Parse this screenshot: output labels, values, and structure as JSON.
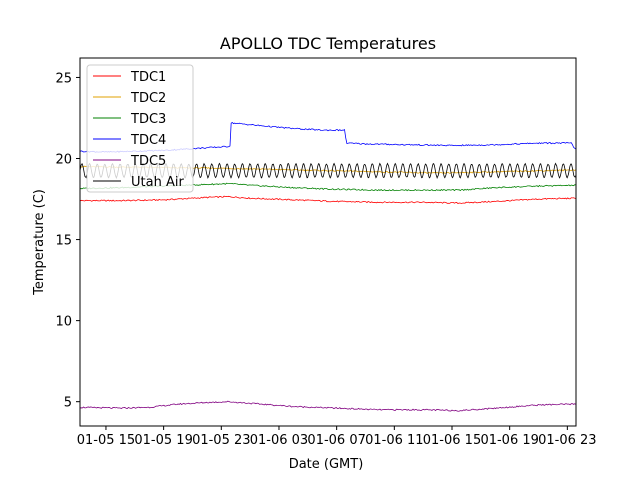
{
  "chart_data": {
    "type": "line",
    "title": "APOLLO TDC Temperatures",
    "xlabel": "Date (GMT)",
    "ylabel": "Temperature (C)",
    "xlim": [
      13.2,
      47.6
    ],
    "ylim": [
      3.5,
      26.2
    ],
    "x_ticks": [
      {
        "value": 15,
        "label": "01-05 15"
      },
      {
        "value": 19,
        "label": "01-05 19"
      },
      {
        "value": 23,
        "label": "01-05 23"
      },
      {
        "value": 27,
        "label": "01-06 03"
      },
      {
        "value": 31,
        "label": "01-06 07"
      },
      {
        "value": 35,
        "label": "01-06 11"
      },
      {
        "value": 39,
        "label": "01-06 15"
      },
      {
        "value": 43,
        "label": "01-06 19"
      },
      {
        "value": 47,
        "label": "01-06 23"
      }
    ],
    "y_ticks": [
      5,
      10,
      15,
      20,
      25
    ],
    "legend_position": "top-left",
    "series": [
      {
        "name": "TDC1",
        "color": "#ff0000",
        "x": [
          13.2,
          16,
          19,
          22,
          23.5,
          25,
          28,
          31,
          34,
          37,
          39.5,
          42,
          45,
          47.6
        ],
        "y": [
          17.4,
          17.4,
          17.45,
          17.6,
          17.65,
          17.55,
          17.45,
          17.35,
          17.3,
          17.3,
          17.25,
          17.35,
          17.5,
          17.55
        ]
      },
      {
        "name": "TDC2",
        "color": "#e0a000",
        "x": [
          13.2,
          18,
          23,
          28,
          33,
          38,
          43,
          47.6
        ],
        "y": [
          19.5,
          19.45,
          19.4,
          19.3,
          19.2,
          19.1,
          19.2,
          19.3
        ]
      },
      {
        "name": "TDC3",
        "color": "#008000",
        "x": [
          13.2,
          16,
          19,
          22,
          23.5,
          25,
          28,
          31,
          34,
          37,
          39.5,
          42,
          45,
          47.6
        ],
        "y": [
          18.15,
          18.2,
          18.3,
          18.4,
          18.45,
          18.35,
          18.2,
          18.1,
          18.05,
          18.05,
          18.05,
          18.2,
          18.3,
          18.35
        ]
      },
      {
        "name": "TDC4",
        "color": "#0000ff",
        "x": [
          13.2,
          15,
          19,
          23.6,
          23.65,
          26,
          28,
          30,
          31.6,
          31.65,
          33,
          36,
          39,
          42,
          45,
          47.3,
          47.5,
          47.6
        ],
        "y": [
          20.45,
          20.4,
          20.5,
          20.75,
          22.2,
          22.0,
          21.85,
          21.75,
          21.75,
          20.95,
          20.9,
          20.85,
          20.8,
          20.85,
          20.95,
          20.95,
          20.6,
          20.6
        ]
      },
      {
        "name": "TDC5",
        "color": "#800080",
        "x": [
          13.2,
          16,
          18,
          20,
          22,
          23.5,
          25,
          28,
          31,
          34,
          37,
          39.5,
          42,
          45,
          47.6
        ],
        "y": [
          4.65,
          4.6,
          4.65,
          4.85,
          4.95,
          5.0,
          4.9,
          4.7,
          4.6,
          4.5,
          4.5,
          4.45,
          4.6,
          4.8,
          4.85
        ]
      },
      {
        "name": "Utah Air",
        "color": "#000000",
        "oscillation": {
          "center": 19.25,
          "amplitude": 0.45,
          "period_hours": 0.53,
          "x_start": 13.2,
          "x_end": 47.6
        }
      }
    ]
  }
}
